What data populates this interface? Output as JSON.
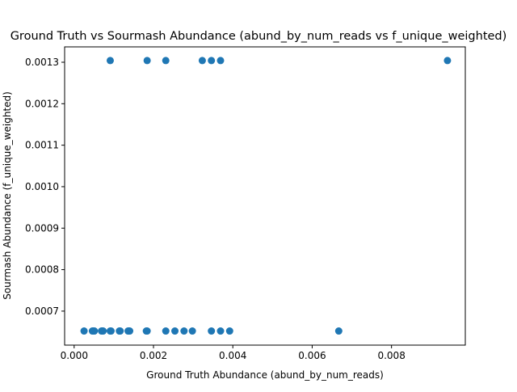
{
  "chart_data": {
    "type": "scatter",
    "title": "Ground Truth vs Sourmash Abundance (abund_by_num_reads vs f_unique_weighted)",
    "xlabel": "Ground Truth Abundance (abund_by_num_reads)",
    "ylabel": "Sourmash Abundance (f_unique_weighted)",
    "xlim": [
      -0.00024,
      0.00986
    ],
    "ylim": [
      0.000618,
      0.001337
    ],
    "x_ticks": [
      0.0,
      0.002,
      0.004,
      0.006,
      0.008
    ],
    "x_tick_labels": [
      "0.000",
      "0.002",
      "0.004",
      "0.006",
      "0.008"
    ],
    "y_ticks": [
      0.0007,
      0.0008,
      0.0009,
      0.001,
      0.0011,
      0.0012,
      0.0013
    ],
    "y_tick_labels": [
      "0.0007",
      "0.0008",
      "0.0009",
      "0.0010",
      "0.0011",
      "0.0012",
      "0.0013"
    ],
    "grid": false,
    "marker_color": "#1f77b4",
    "points": [
      {
        "x": 0.00091,
        "y": 0.001304
      },
      {
        "x": 0.00184,
        "y": 0.001304
      },
      {
        "x": 0.00231,
        "y": 0.001304
      },
      {
        "x": 0.00323,
        "y": 0.001304
      },
      {
        "x": 0.00346,
        "y": 0.001304
      },
      {
        "x": 0.00369,
        "y": 0.001304
      },
      {
        "x": 0.00941,
        "y": 0.001304
      },
      {
        "x": 0.00025,
        "y": 0.000652
      },
      {
        "x": 0.00046,
        "y": 0.000652
      },
      {
        "x": 0.00048,
        "y": 0.000652
      },
      {
        "x": 0.00051,
        "y": 0.000652
      },
      {
        "x": 0.00069,
        "y": 0.000652
      },
      {
        "x": 0.00071,
        "y": 0.000652
      },
      {
        "x": 0.00073,
        "y": 0.000652
      },
      {
        "x": 0.00091,
        "y": 0.000652
      },
      {
        "x": 0.00093,
        "y": 0.000652
      },
      {
        "x": 0.00114,
        "y": 0.000652
      },
      {
        "x": 0.00116,
        "y": 0.000652
      },
      {
        "x": 0.00136,
        "y": 0.000652
      },
      {
        "x": 0.00138,
        "y": 0.000652
      },
      {
        "x": 0.0014,
        "y": 0.000652
      },
      {
        "x": 0.00182,
        "y": 0.000652
      },
      {
        "x": 0.00184,
        "y": 0.000652
      },
      {
        "x": 0.00231,
        "y": 0.000652
      },
      {
        "x": 0.00254,
        "y": 0.000652
      },
      {
        "x": 0.00277,
        "y": 0.000652
      },
      {
        "x": 0.00298,
        "y": 0.000652
      },
      {
        "x": 0.00346,
        "y": 0.000652
      },
      {
        "x": 0.00369,
        "y": 0.000652
      },
      {
        "x": 0.00392,
        "y": 0.000652
      },
      {
        "x": 0.00667,
        "y": 0.000652
      }
    ]
  }
}
